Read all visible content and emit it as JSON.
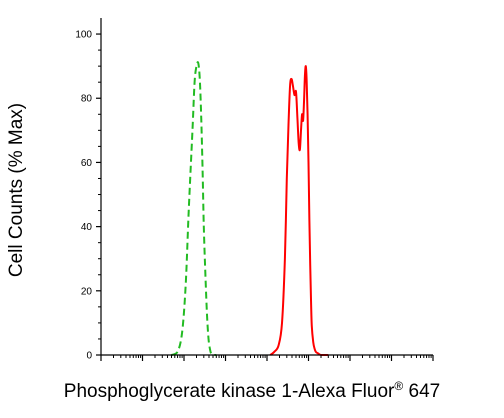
{
  "chart_data": {
    "type": "line",
    "title": "",
    "xlabel": "Phosphoglycerate kinase 1-Alexa Fluor",
    "xlabel_superscript": "®",
    "xlabel_suffix": " 647",
    "ylabel": "Cell Counts (% Max)",
    "xscale": "log",
    "xlim": [
      0.01,
      1000000
    ],
    "ylim": [
      0,
      105
    ],
    "y_ticks": [
      0,
      20,
      40,
      60,
      80,
      100
    ],
    "y_tick_labels": [
      "0",
      "20",
      "40",
      "60",
      "80",
      "100"
    ],
    "x_tick_labels_shown": false,
    "grid": false,
    "legend": "none",
    "series": [
      {
        "color": "#22bb22",
        "line_style": "dashed",
        "x": [
          0.5,
          0.7,
          0.9,
          1.1,
          1.3,
          1.6,
          1.8,
          2.0,
          2.2,
          2.4,
          2.6,
          2.8,
          3.0,
          3.3,
          3.6,
          3.9,
          4.2,
          4.5,
          5.0,
          5.5,
          6.0
        ],
        "y": [
          0,
          1,
          7,
          22,
          45,
          70,
          85,
          90,
          91,
          86,
          74,
          58,
          40,
          24,
          12,
          5,
          2,
          0.5,
          0,
          0,
          0
        ]
      },
      {
        "color": "#ff0000",
        "line_style": "solid",
        "x": [
          120,
          150,
          190,
          230,
          270,
          300,
          330,
          360,
          390,
          420,
          460,
          500,
          540,
          580,
          620,
          660,
          700,
          740,
          780,
          820,
          860,
          900,
          950,
          1000,
          1050,
          1100,
          1150,
          1200,
          1300,
          1400,
          1500,
          1700,
          2000,
          3000
        ],
        "y": [
          0,
          1,
          3,
          10,
          30,
          55,
          72,
          84,
          86,
          84,
          81,
          82,
          74,
          66,
          64,
          70,
          75,
          73,
          79,
          87,
          90,
          86,
          75,
          60,
          42,
          28,
          17,
          9,
          4,
          2,
          1,
          0.5,
          0,
          0
        ]
      }
    ]
  }
}
